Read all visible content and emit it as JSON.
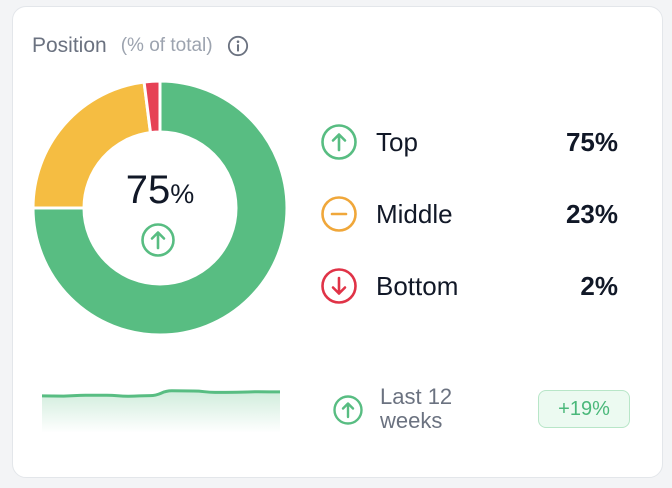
{
  "card": {
    "title": "Position",
    "subtitle": "(% of total)",
    "info_icon": "info-circle-icon"
  },
  "chart_data": {
    "type": "pie",
    "categories": [
      "Top",
      "Middle",
      "Bottom"
    ],
    "values": [
      75,
      23,
      2
    ],
    "colors": [
      "#58bd82",
      "#f5bd42",
      "#e64155"
    ]
  },
  "center": {
    "value": "75",
    "unit": "%",
    "icon": "arrow-up-circle-icon"
  },
  "legend": [
    {
      "label": "Top",
      "value": "75%",
      "icon": "arrow-up-circle-icon",
      "color": "#58bd82"
    },
    {
      "label": "Middle",
      "value": "23%",
      "icon": "minus-circle-icon",
      "color": "#f0a73a"
    },
    {
      "label": "Bottom",
      "value": "2%",
      "icon": "arrow-down-circle-icon",
      "color": "#e03347"
    }
  ],
  "trend": {
    "label": "Last 12 weeks",
    "change": "+19%",
    "icon": "arrow-up-circle-icon",
    "sparkline": [
      0.38,
      0.37,
      0.42,
      0.42,
      0.36,
      0.4,
      0.7,
      0.69,
      0.6,
      0.61,
      0.64,
      0.63
    ],
    "color": "#58bd82"
  }
}
